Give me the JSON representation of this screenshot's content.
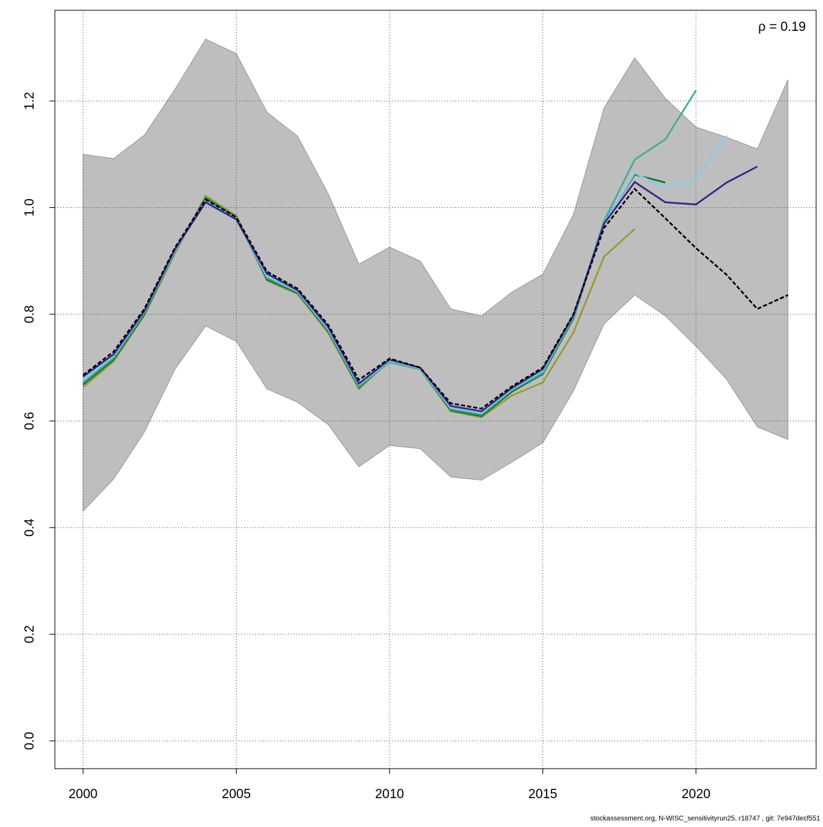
{
  "chart_data": {
    "type": "line",
    "annotation": "ρ = 0.19",
    "footer": "stockassessment.org, N-WISC_sensitivityrun25, r18747 , git: 7e947decf551",
    "x": [
      2000,
      2001,
      2002,
      2003,
      2004,
      2005,
      2006,
      2007,
      2008,
      2009,
      2010,
      2011,
      2012,
      2013,
      2014,
      2015,
      2016,
      2017,
      2018,
      2019,
      2020,
      2021,
      2022,
      2023
    ],
    "band": {
      "color": "#bebebe",
      "upper": [
        1.1,
        1.092,
        1.136,
        1.222,
        1.316,
        1.289,
        1.179,
        1.134,
        1.026,
        0.894,
        0.926,
        0.9,
        0.81,
        0.797,
        0.842,
        0.875,
        0.987,
        1.187,
        1.281,
        1.205,
        1.151,
        1.132,
        1.11,
        1.24
      ],
      "lower": [
        0.431,
        0.491,
        0.579,
        0.697,
        0.778,
        0.749,
        0.66,
        0.635,
        0.593,
        0.514,
        0.554,
        0.548,
        0.495,
        0.489,
        0.523,
        0.559,
        0.656,
        0.782,
        0.836,
        0.797,
        0.74,
        0.678,
        0.589,
        0.565
      ]
    },
    "series": [
      {
        "color": "#999933",
        "values": [
          0.663,
          0.712,
          0.798,
          0.915,
          1.022,
          0.985,
          0.863,
          0.838,
          0.765,
          0.66,
          0.713,
          0.697,
          0.618,
          0.607,
          0.648,
          0.672,
          0.766,
          0.908,
          0.96,
          null,
          null,
          null,
          null,
          null
        ]
      },
      {
        "color": "#117733",
        "values": [
          0.668,
          0.715,
          0.8,
          0.917,
          1.018,
          0.982,
          0.865,
          0.84,
          0.768,
          0.663,
          0.712,
          0.697,
          0.62,
          0.609,
          0.655,
          0.688,
          0.792,
          0.972,
          1.062,
          1.047,
          null,
          null,
          null,
          null
        ]
      },
      {
        "color": "#44aa99",
        "values": [
          0.672,
          0.718,
          0.803,
          0.918,
          1.015,
          0.98,
          0.868,
          0.842,
          0.77,
          0.665,
          0.71,
          0.697,
          0.622,
          0.612,
          0.658,
          0.69,
          0.795,
          0.975,
          1.09,
          1.128,
          1.22,
          null,
          null,
          null
        ]
      },
      {
        "color": "#88ccee",
        "values": [
          0.678,
          0.722,
          0.805,
          0.92,
          1.012,
          0.979,
          0.872,
          0.843,
          0.773,
          0.668,
          0.713,
          0.699,
          0.625,
          0.615,
          0.66,
          0.694,
          0.797,
          0.97,
          1.065,
          1.036,
          1.052,
          1.135,
          null,
          null
        ]
      },
      {
        "color": "#332288",
        "values": [
          0.683,
          0.725,
          0.806,
          0.922,
          1.01,
          0.978,
          0.876,
          0.845,
          0.776,
          0.67,
          0.715,
          0.7,
          0.628,
          0.618,
          0.662,
          0.697,
          0.798,
          0.97,
          1.048,
          1.01,
          1.006,
          1.047,
          1.077,
          null
        ]
      },
      {
        "color": "#000000",
        "line_style": "dashed",
        "values": [
          0.686,
          0.73,
          0.81,
          0.925,
          1.015,
          0.982,
          0.88,
          0.848,
          0.78,
          0.677,
          0.717,
          0.7,
          0.633,
          0.623,
          0.665,
          0.7,
          0.8,
          0.962,
          1.035,
          0.98,
          0.924,
          0.874,
          0.81,
          0.836
        ]
      }
    ],
    "xlim": [
      1999.08,
      2023.92
    ],
    "xticks": [
      2000,
      2005,
      2010,
      2015,
      2020
    ],
    "ylim": [
      -0.052,
      1.37
    ],
    "yticks": [
      {
        "value": 0,
        "label": "0.0"
      },
      0.2,
      0.4,
      0.6,
      0.8,
      {
        "value": 1,
        "label": "1.0"
      },
      1.2
    ],
    "grid": true
  }
}
